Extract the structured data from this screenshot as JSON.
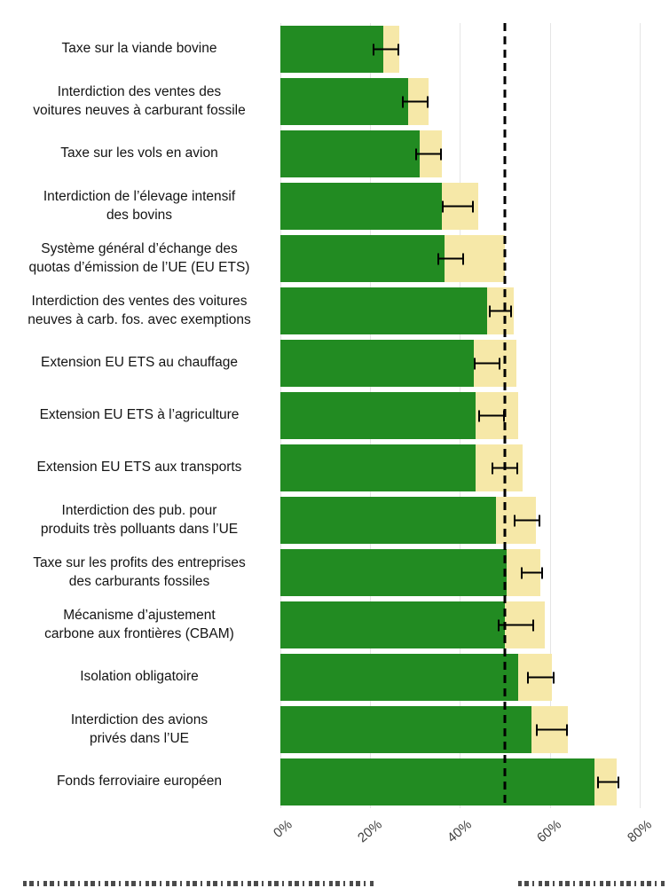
{
  "figure": {
    "background": "#ffffff",
    "caption_cropped_at_bottom": true
  },
  "chart_data": {
    "type": "bar",
    "orientation": "horizontal",
    "title": "",
    "xlabel": "",
    "ylabel": "",
    "x_axis": {
      "tick_labels": [
        "0%",
        "20%",
        "40%",
        "60%",
        "80%"
      ],
      "tick_values": [
        0,
        20,
        40,
        60,
        80
      ],
      "max": 85
    },
    "reference_line_value": 50,
    "grid": "vertical-major",
    "legend": "none-visible",
    "colors": {
      "green_bar": "#228B22",
      "yellow_bar": "#F6E8A8",
      "error_bar": "#000000",
      "reference_line": "#000000",
      "gridline": "#E5E5E5"
    },
    "rows": [
      {
        "label": "Taxe sur la viande bovine",
        "green": 23,
        "total": 26.5,
        "err_center": 23.5,
        "err_half": 3
      },
      {
        "label": "Interdiction des ventes des\nvoitures neuves à carburant fossile",
        "green": 28.5,
        "total": 33,
        "err_center": 30,
        "err_half": 3
      },
      {
        "label": "Taxe sur les vols en avion",
        "green": 31,
        "total": 36,
        "err_center": 33,
        "err_half": 3
      },
      {
        "label": "Interdiction de l’élevage intensif\ndes bovins",
        "green": 36,
        "total": 44,
        "err_center": 39.5,
        "err_half": 3.5
      },
      {
        "label": "Système général d’échange des\nquotas d’émission de l’UE (EU ETS)",
        "green": 36.5,
        "total": 50,
        "err_center": 38,
        "err_half": 3
      },
      {
        "label": "Interdiction des ventes des voitures\nneuves à carb. fos. avec exemptions",
        "green": 46,
        "total": 52,
        "err_center": 49,
        "err_half": 2.5
      },
      {
        "label": "Extension EU ETS au chauffage",
        "green": 43,
        "total": 52.5,
        "err_center": 46,
        "err_half": 3
      },
      {
        "label": "Extension EU ETS à l’agriculture",
        "green": 43.5,
        "total": 53,
        "err_center": 47,
        "err_half": 3
      },
      {
        "label": "Extension EU ETS aux transports",
        "green": 43.5,
        "total": 54,
        "err_center": 50,
        "err_half": 3
      },
      {
        "label": "Interdiction des pub. pour\nproduits très polluants dans l’UE",
        "green": 48,
        "total": 57,
        "err_center": 55,
        "err_half": 3
      },
      {
        "label": "Taxe sur les profits des entreprises\ndes carburants fossiles",
        "green": 50.5,
        "total": 58,
        "err_center": 56,
        "err_half": 2.5
      },
      {
        "label": "Mécanisme d’ajustement\ncarbone aux frontières (CBAM)",
        "green": 50,
        "total": 59,
        "err_center": 52.5,
        "err_half": 4
      },
      {
        "label": "Isolation obligatoire",
        "green": 53,
        "total": 60.5,
        "err_center": 58,
        "err_half": 3
      },
      {
        "label": "Interdiction des avions\nprivés dans l’UE",
        "green": 56,
        "total": 64,
        "err_center": 60.5,
        "err_half": 3.5
      },
      {
        "label": "Fonds ferroviaire européen",
        "green": 70,
        "total": 75,
        "err_center": 73,
        "err_half": 2.5
      }
    ]
  }
}
